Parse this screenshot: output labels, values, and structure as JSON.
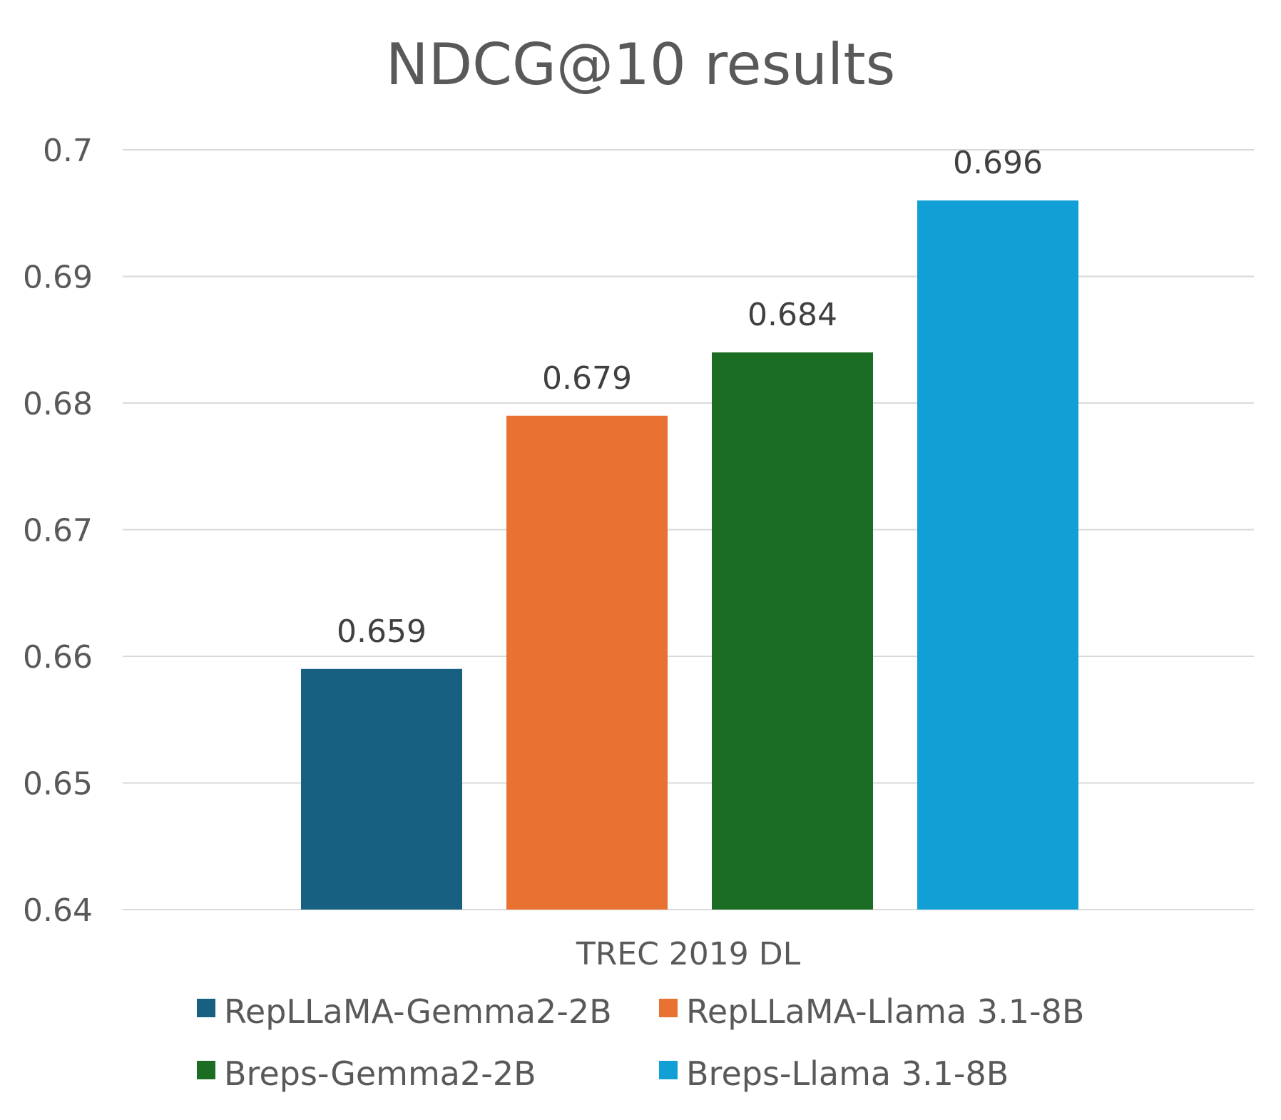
{
  "chart_data": {
    "type": "bar",
    "title": "NDCG@10 results",
    "categories": [
      "TREC 2019 DL"
    ],
    "series": [
      {
        "name": "RepLLaMA-Gemma2-2B",
        "values": [
          0.659
        ],
        "color": "#176082"
      },
      {
        "name": "RepLLaMA-Llama 3.1-8B",
        "values": [
          0.679
        ],
        "color": "#e97132"
      },
      {
        "name": "Breps-Gemma2-2B",
        "values": [
          0.684
        ],
        "color": "#1b6d24"
      },
      {
        "name": "Breps-Llama 3.1-8B",
        "values": [
          0.696
        ],
        "color": "#129fd6"
      }
    ],
    "data_labels": [
      "0.659",
      "0.679",
      "0.684",
      "0.696"
    ],
    "yticks": [
      "0.64",
      "0.65",
      "0.66",
      "0.67",
      "0.68",
      "0.69",
      "0.7"
    ],
    "ylim": [
      0.64,
      0.7
    ],
    "xlabel": "",
    "ylabel": "",
    "grid": true,
    "legend_position": "bottom"
  }
}
